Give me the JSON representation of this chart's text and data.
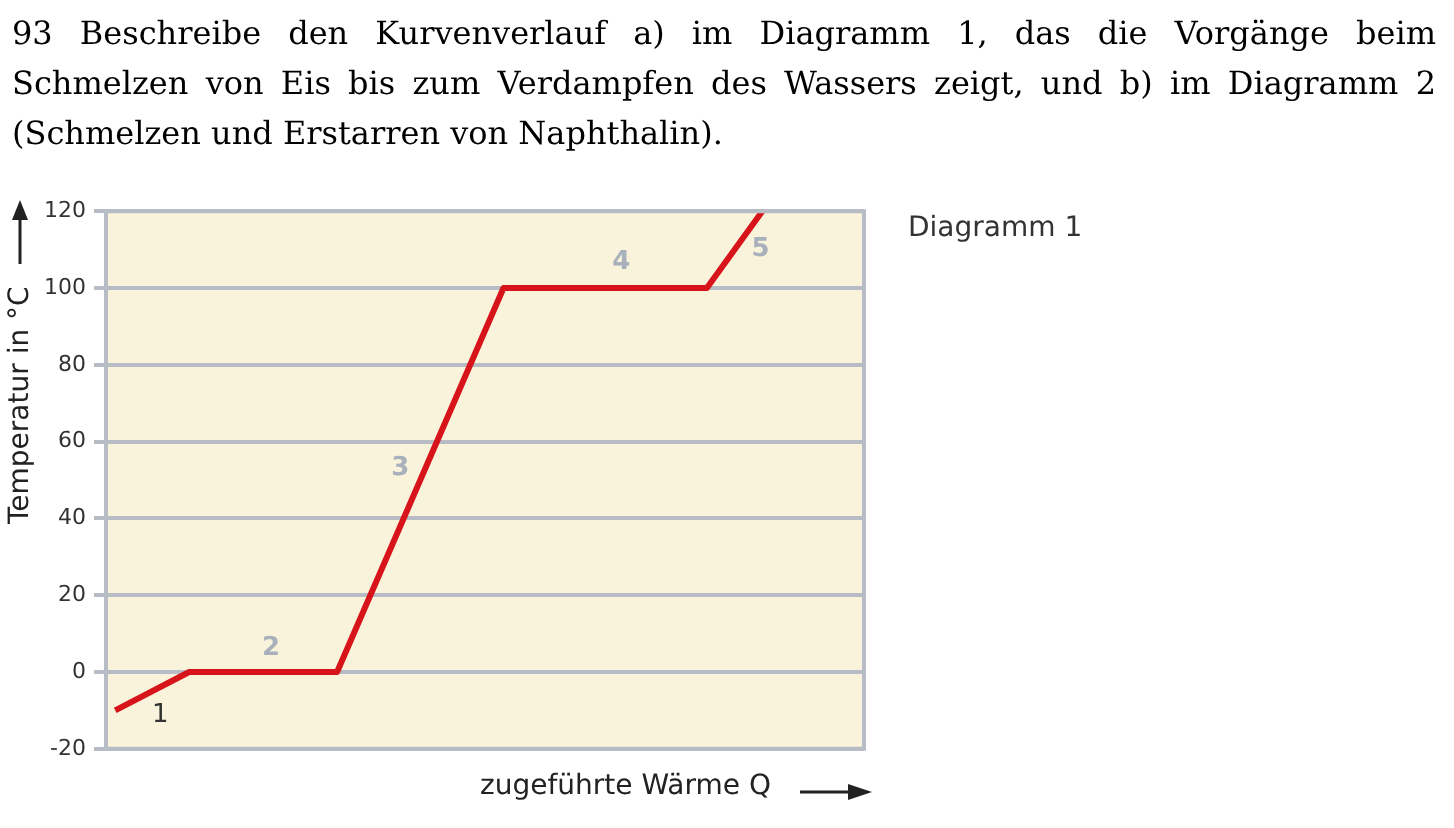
{
  "chart_data": {
    "type": "line",
    "title": "93 Beschreibe den Kurvenverlauf a) im Diagramm 1, das die Vorgänge beim Schmelzen von Eis bis zum Verdampfen des Wassers zeigt, und b) im Diagramm 2 (Schmelzen und Erstarren von Naphthalin).",
    "subtitle": "Diagramm 1",
    "xlabel": "zugeführte Wärme Q",
    "ylabel": "Temperatur in °C",
    "categories": [
      null,
      null,
      null,
      null,
      null,
      null,
      null,
      null,
      null,
      null,
      null,
      null,
      null,
      null,
      null,
      null,
      null,
      null,
      null,
      null,
      null,
      null,
      null,
      null,
      null,
      null,
      null,
      null,
      null,
      null,
      null,
      null,
      null,
      null,
      null,
      null,
      null,
      null,
      null,
      null,
      null
    ],
    "series": [
      {
        "color": "#d7141a",
        "values": [
          -10,
          null,
          null,
          null,
          0,
          null,
          null,
          null,
          null,
          null,
          null,
          null,
          0,
          null,
          null,
          null,
          null,
          null,
          null,
          null,
          null,
          100,
          null,
          null,
          null,
          null,
          null,
          null,
          null,
          null,
          null,
          null,
          100,
          null,
          null,
          120,
          null,
          null,
          null,
          null,
          null
        ]
      }
    ],
    "ylim": [
      -20,
      120
    ],
    "yticks": [
      -20,
      0,
      20,
      40,
      60,
      80,
      100,
      120
    ],
    "grid": "y",
    "legend": false,
    "marker": "none",
    "line_style": "solid",
    "annotations": [
      "1",
      "2",
      "3",
      "4",
      "5"
    ]
  }
}
